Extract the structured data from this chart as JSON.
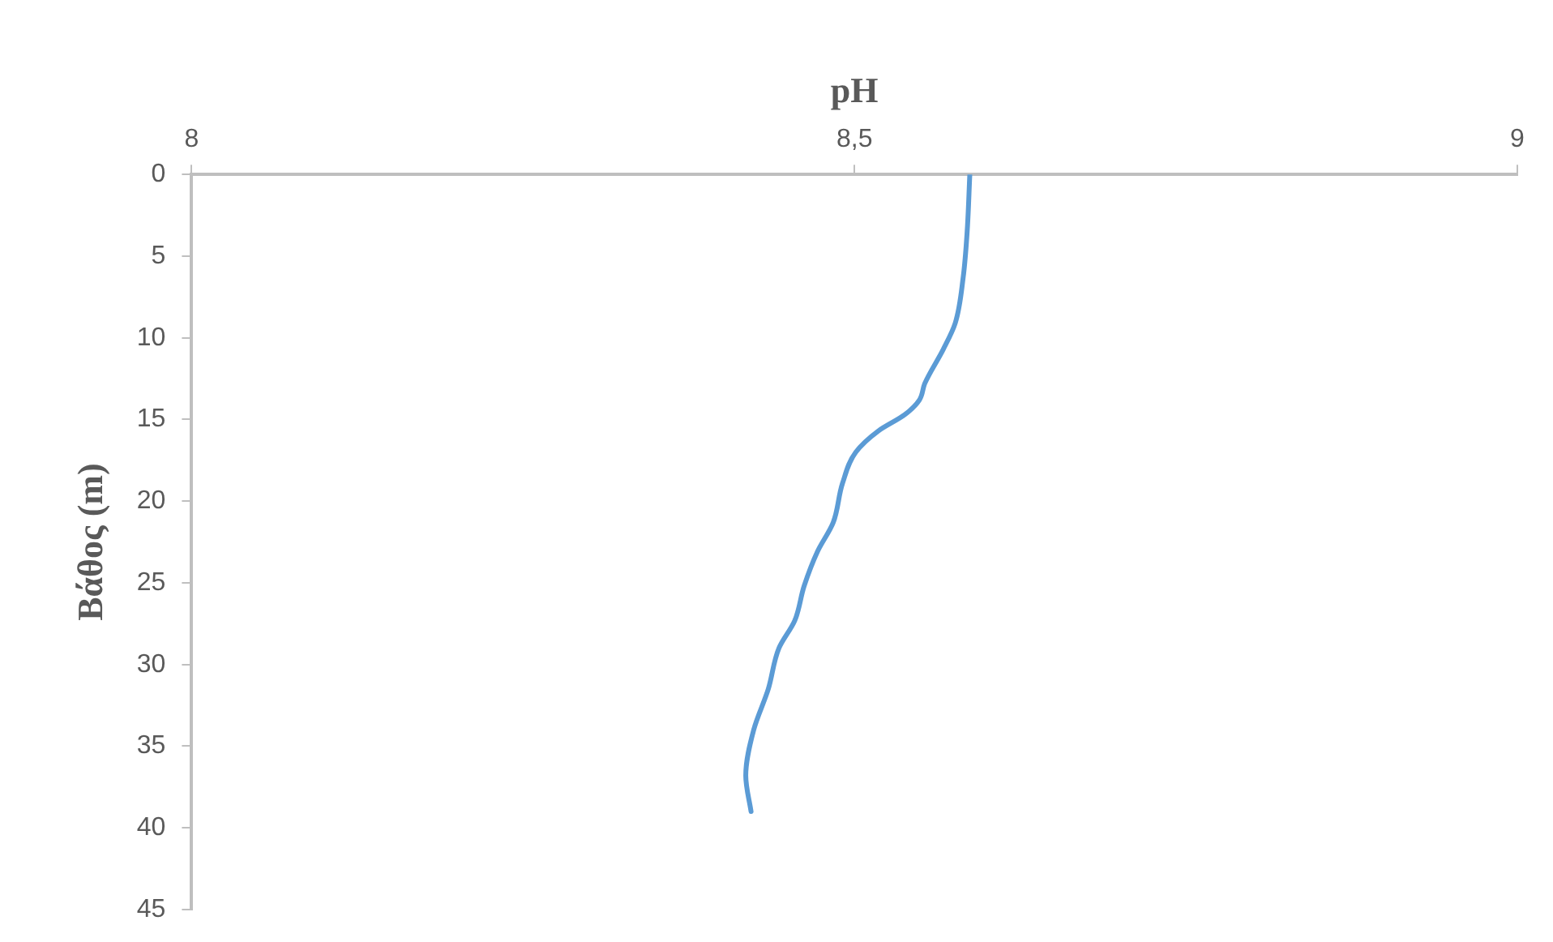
{
  "chart_data": {
    "type": "line",
    "xlabel": "pH",
    "ylabel": "Βάθος (m)",
    "xlim": [
      8,
      9
    ],
    "xticks": [
      8,
      {
        "value": 8.5,
        "label": "8,5"
      },
      9
    ],
    "ylim": [
      45,
      0
    ],
    "yticks": [
      0,
      5,
      10,
      15,
      20,
      25,
      30,
      35,
      40,
      45
    ],
    "grid": false,
    "legend": false,
    "marker": "none",
    "line_style": "solid",
    "series": [
      {
        "color": "#5b9bd5",
        "x": [
          8.587,
          8.585,
          8.582,
          8.576,
          8.567,
          8.553,
          8.549,
          8.538,
          8.518,
          8.501,
          8.491,
          8.484,
          8.472,
          8.462,
          8.455,
          8.443,
          8.435,
          8.424,
          8.418,
          8.422
        ],
        "values": [
          0,
          3.5,
          6.3,
          9.1,
          10.7,
          12.8,
          13.8,
          14.7,
          15.7,
          17.0,
          18.9,
          21.3,
          23.1,
          25.2,
          27.3,
          29.0,
          31.5,
          34.0,
          36.8,
          39.0
        ]
      }
    ]
  }
}
